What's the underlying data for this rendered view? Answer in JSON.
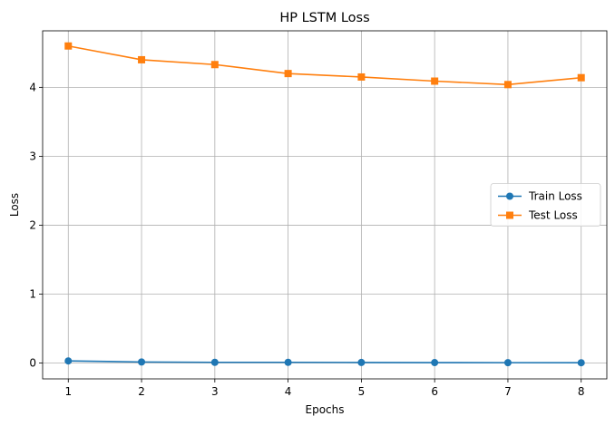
{
  "chart_data": {
    "type": "line",
    "title": "HP LSTM Loss",
    "xlabel": "Epochs",
    "ylabel": "Loss",
    "x": [
      1,
      2,
      3,
      4,
      5,
      6,
      7,
      8
    ],
    "xlim": [
      0.65,
      8.35
    ],
    "ylim": [
      -0.23,
      4.82
    ],
    "xticks": [
      1,
      2,
      3,
      4,
      5,
      6,
      7,
      8
    ],
    "yticks": [
      0,
      1,
      2,
      3,
      4
    ],
    "grid": true,
    "legend_position": "center-right",
    "series": [
      {
        "name": "Train Loss",
        "color": "#1f77b4",
        "marker": "circle",
        "values": [
          0.03,
          0.015,
          0.01,
          0.01,
          0.008,
          0.006,
          0.005,
          0.004
        ]
      },
      {
        "name": "Test Loss",
        "color": "#ff7f0e",
        "marker": "square",
        "values": [
          4.6,
          4.4,
          4.33,
          4.2,
          4.15,
          4.09,
          4.04,
          4.14
        ]
      }
    ]
  }
}
